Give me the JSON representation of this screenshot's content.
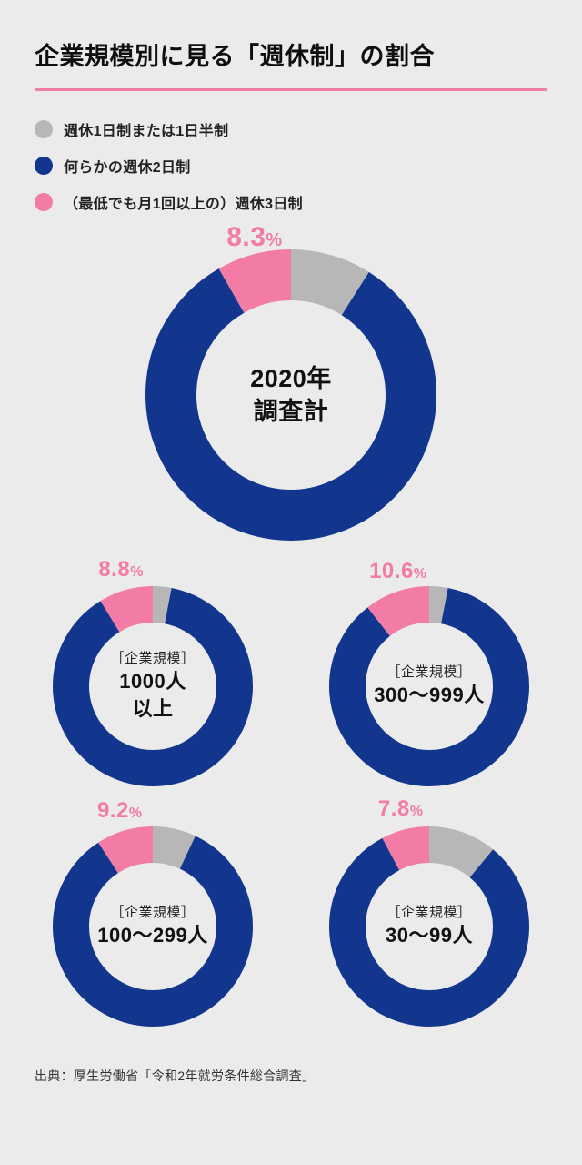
{
  "title": "企業規模別に見る「週休制」の割合",
  "title_rule_color": "#f27ca6",
  "background_color": "#ebebeb",
  "legend": [
    {
      "label": "週休1日制または1日半制",
      "color": "#b7b7b8"
    },
    {
      "label": "何らかの週休2日制",
      "color": "#12358d"
    },
    {
      "label": "（最低でも月1回以上の）週休3日制",
      "color": "#f27ca6"
    }
  ],
  "donut_colors": {
    "gray": "#b7b7b8",
    "blue": "#12358d",
    "pink": "#f27ca6"
  },
  "donut_big": {
    "outer_r": 160,
    "inner_r": 104
  },
  "donut_small": {
    "outer_r": 110,
    "inner_r": 70
  },
  "pct_label_color": "#f27ca6",
  "charts": {
    "main": {
      "center_lines": [
        "2020年",
        "調査計"
      ],
      "bracket": null,
      "slices": {
        "pink": 8.3,
        "gray": 9.0,
        "blue": 82.7
      },
      "pct_display": "8.3"
    },
    "row1_left": {
      "bracket": "［企業規模］",
      "center_lines": [
        "1000人",
        "以上"
      ],
      "slices": {
        "pink": 8.8,
        "gray": 3.0,
        "blue": 88.2
      },
      "pct_display": "8.8"
    },
    "row1_right": {
      "bracket": "［企業規模］",
      "center_lines": [
        "300〜999人"
      ],
      "slices": {
        "pink": 10.6,
        "gray": 3.0,
        "blue": 86.4
      },
      "pct_display": "10.6"
    },
    "row2_left": {
      "bracket": "［企業規模］",
      "center_lines": [
        "100〜299人"
      ],
      "slices": {
        "pink": 9.2,
        "gray": 7.0,
        "blue": 83.8
      },
      "pct_display": "9.2"
    },
    "row2_right": {
      "bracket": "［企業規模］",
      "center_lines": [
        "30〜99人"
      ],
      "slices": {
        "pink": 7.8,
        "gray": 11.0,
        "blue": 81.2
      },
      "pct_display": "7.8"
    }
  },
  "source": "出典：厚生労働省「令和2年就労条件総合調査」"
}
